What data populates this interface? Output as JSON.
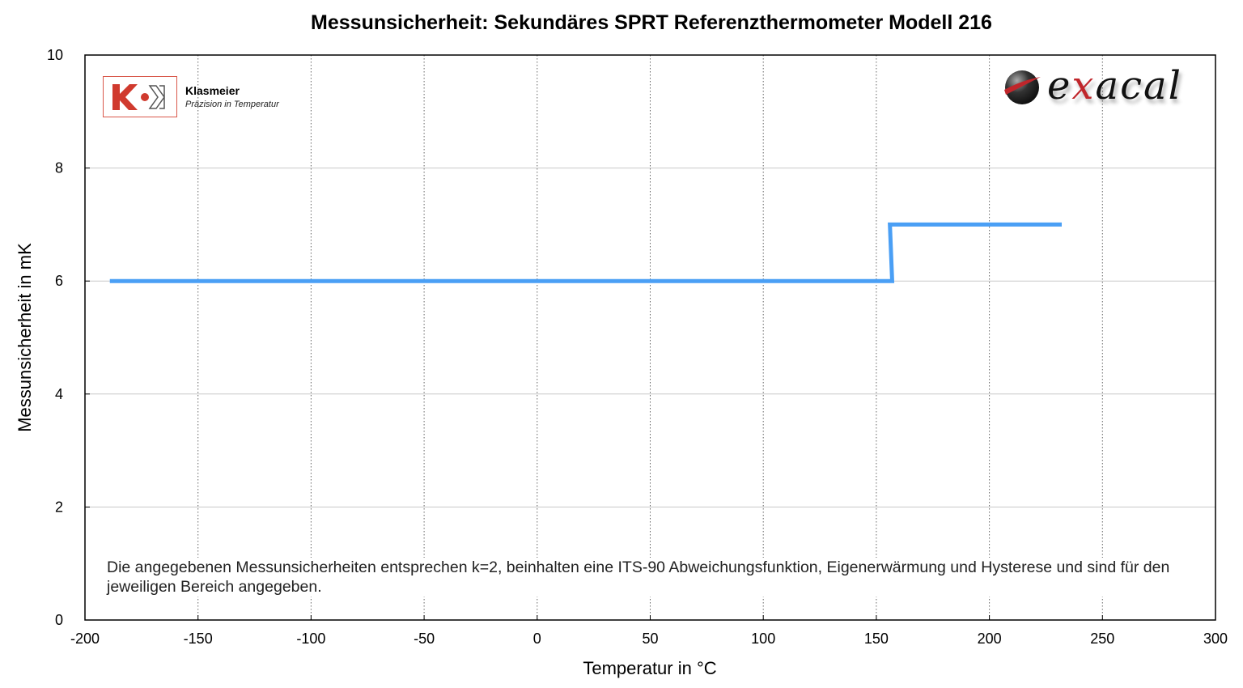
{
  "chart_data": {
    "type": "line",
    "title": "Messunsicherheit: Sekundäres SPRT Referenzthermometer Modell 216",
    "xlabel": "Temperatur in °C",
    "ylabel": "Messunsicherheit in mK",
    "xlim": [
      -200,
      300
    ],
    "ylim": [
      0,
      10
    ],
    "xticks": [
      "-200",
      "-150",
      "-100",
      "-50",
      "0",
      "50",
      "100",
      "150",
      "200",
      "250",
      "300"
    ],
    "yticks": [
      "0",
      "2",
      "4",
      "6",
      "8",
      "10"
    ],
    "grid": {
      "x": "dotted",
      "y": "solid"
    },
    "series": [
      {
        "color": "#4a9ff5",
        "points": [
          [
            -189,
            6
          ],
          [
            157,
            6
          ],
          [
            156,
            7
          ],
          [
            232,
            7
          ]
        ]
      }
    ],
    "annotation": "Die angegebenen Messunsicherheiten entsprechen k=2, beinhalten eine ITS-90 Abweichungsfunktion, Eigenerwärmung und Hysterese und sind für den jeweiligen Bereich angegeben."
  },
  "logos": {
    "klasmeier": {
      "name": "Klasmeier",
      "tagline": "Präzision in Temperatur",
      "mark": "KK",
      "color": "#d03a2e"
    },
    "exacal": {
      "text": "exacal",
      "accent": "#c0262b"
    }
  }
}
